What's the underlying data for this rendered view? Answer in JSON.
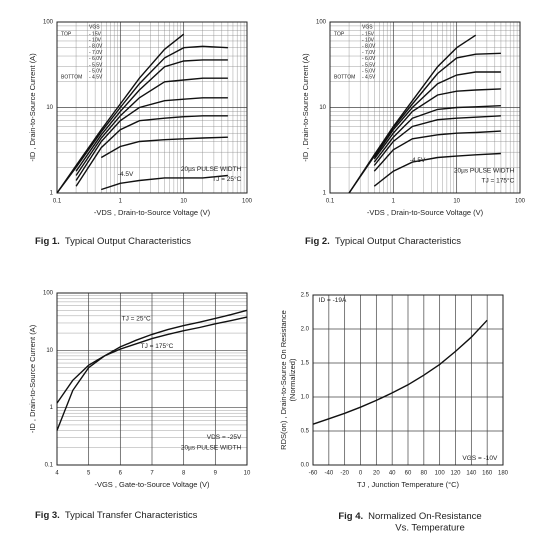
{
  "chart_data": [
    {
      "type": "line",
      "figure_number": "Fig 1.",
      "caption": [
        "Typical Output Characteristics"
      ],
      "xlabel": [
        "-VDS , Drain-to-Source Voltage (V)"
      ],
      "ylabel": [
        "-ID , Drain-to-Source Current (A)"
      ],
      "xlog": true,
      "ylog": true,
      "grid": true,
      "xlim": [
        0.1,
        100
      ],
      "xticks": [
        0.1,
        1,
        10,
        100
      ],
      "ylim": [
        1,
        100
      ],
      "yticks": [
        1,
        10,
        100
      ],
      "legend_title": "VGS",
      "legend_top": "TOP",
      "legend_bottom": "BOTTOM",
      "annotations": [
        "-4.5V",
        "20µs PULSE WIDTH",
        "TJ = 25°C"
      ],
      "x": [
        0.1,
        0.2,
        0.5,
        1,
        2,
        5,
        10,
        20,
        50
      ],
      "series": [
        {
          "name": "- 15V",
          "color": "#111",
          "values": [
            1.0,
            2.1,
            5.5,
            11,
            22,
            48,
            72,
            null,
            null
          ]
        },
        {
          "name": "- 10V",
          "color": "#111",
          "values": [
            1.0,
            2.0,
            5.2,
            10,
            19,
            38,
            50,
            52,
            50
          ]
        },
        {
          "name": "- 8.0V",
          "color": "#111",
          "values": [
            null,
            1.8,
            4.8,
            9,
            16,
            30,
            35,
            36,
            36
          ]
        },
        {
          "name": "- 7.0V",
          "color": "#111",
          "values": [
            null,
            1.6,
            4.4,
            8,
            13,
            20,
            21,
            22,
            22
          ]
        },
        {
          "name": "- 6.0V",
          "color": "#111",
          "values": [
            null,
            1.4,
            4,
            7,
            10,
            12,
            12.5,
            13,
            13
          ]
        },
        {
          "name": "- 5.5V",
          "color": "#111",
          "values": [
            null,
            1.2,
            3.4,
            5.5,
            7,
            7.5,
            7.8,
            8,
            8
          ]
        },
        {
          "name": "- 5.0V",
          "color": "#111",
          "values": [
            null,
            null,
            2.6,
            3.5,
            4,
            4.2,
            4.3,
            4.4,
            4.5
          ]
        },
        {
          "name": "- 4.5V",
          "color": "#111",
          "values": [
            null,
            null,
            1.1,
            1.3,
            1.4,
            1.5,
            1.5,
            1.5,
            1.6
          ]
        }
      ]
    },
    {
      "type": "line",
      "figure_number": "Fig 2.",
      "caption": [
        "Typical Output Characteristics"
      ],
      "xlabel": [
        "-VDS , Drain-to-Source Voltage (V)"
      ],
      "ylabel": [
        "-ID , Drain-to-Source Current (A)"
      ],
      "xlog": true,
      "ylog": true,
      "grid": true,
      "xlim": [
        0.1,
        100
      ],
      "xticks": [
        0.1,
        1,
        10,
        100
      ],
      "ylim": [
        1,
        100
      ],
      "yticks": [
        1,
        10,
        100
      ],
      "legend_title": "VGS",
      "legend_top": "TOP",
      "legend_bottom": "BOTTOM",
      "annotations": [
        "-4.5V",
        "20µs PULSE WIDTH",
        "TJ = 175°C"
      ],
      "x": [
        0.1,
        0.2,
        0.5,
        1,
        2,
        5,
        10,
        20,
        50
      ],
      "series": [
        {
          "name": "- 15V",
          "color": "#111",
          "values": [
            null,
            1.0,
            2.8,
            6,
            12,
            30,
            50,
            70,
            null
          ]
        },
        {
          "name": "- 10V",
          "color": "#111",
          "values": [
            null,
            1.0,
            2.7,
            5.8,
            11,
            25,
            38,
            42,
            43
          ]
        },
        {
          "name": "- 8.0V",
          "color": "#111",
          "values": [
            null,
            null,
            2.6,
            5.5,
            10,
            19,
            24,
            26,
            26
          ]
        },
        {
          "name": "- 7.0V",
          "color": "#111",
          "values": [
            null,
            null,
            2.5,
            5,
            9,
            14,
            15.5,
            16,
            16.5
          ]
        },
        {
          "name": "- 6.0V",
          "color": "#111",
          "values": [
            null,
            null,
            2.3,
            4.5,
            7.5,
            9.5,
            10,
            10.2,
            10.5
          ]
        },
        {
          "name": "- 5.5V",
          "color": "#111",
          "values": [
            null,
            null,
            2.1,
            4,
            6,
            7.2,
            7.5,
            7.7,
            8
          ]
        },
        {
          "name": "- 5.0V",
          "color": "#111",
          "values": [
            null,
            null,
            1.8,
            3.2,
            4.3,
            4.8,
            5,
            5.1,
            5.3
          ]
        },
        {
          "name": "- 4.5V",
          "color": "#111",
          "values": [
            null,
            null,
            1.2,
            1.8,
            2.3,
            2.6,
            2.7,
            2.8,
            2.9
          ]
        }
      ]
    },
    {
      "type": "line",
      "figure_number": "Fig 3.",
      "caption": [
        "Typical Transfer Characteristics"
      ],
      "xlabel": [
        "-VGS , Gate-to-Source Voltage (V)"
      ],
      "ylabel": [
        "-ID , Drain-to-Source Current (A)"
      ],
      "xlog": false,
      "ylog": true,
      "grid": true,
      "xlim": [
        4,
        10
      ],
      "xticks": [
        4,
        5,
        6,
        7,
        8,
        9,
        10
      ],
      "ylim": [
        0.1,
        100
      ],
      "yticks": [
        0.1,
        1,
        10,
        100
      ],
      "annotations": [
        "VDS = -25V",
        "20µs PULSE WIDTH"
      ],
      "x": [
        4,
        4.5,
        5,
        5.5,
        6,
        6.5,
        7,
        7.5,
        8,
        8.5,
        9,
        9.5,
        10
      ],
      "series": [
        {
          "name": "TJ = 25°C",
          "color": "#111",
          "values": [
            0.4,
            2,
            5,
            8,
            11.5,
            15,
            19,
            23,
            27,
            31,
            36,
            42,
            50
          ]
        },
        {
          "name": "TJ = 175°C",
          "color": "#111",
          "values": [
            1.2,
            3,
            5.5,
            8,
            10.5,
            13,
            16,
            19,
            22,
            25,
            29,
            33,
            38
          ]
        }
      ]
    },
    {
      "type": "line",
      "figure_number": "Fig 4.",
      "caption": [
        "Normalized On-Resistance",
        "Vs. Temperature"
      ],
      "xlabel": [
        "TJ , Junction Temperature (°C)"
      ],
      "ylabel": [
        "RDS(on) , Drain-to-Source On Resistance",
        "(Normalized)"
      ],
      "xlog": false,
      "ylog": false,
      "grid": true,
      "xlim": [
        -60,
        180
      ],
      "xticks": [
        -60,
        -40,
        -20,
        0,
        20,
        40,
        60,
        80,
        100,
        120,
        140,
        160,
        180
      ],
      "ylim": [
        0,
        2.5
      ],
      "yticks": [
        {
          "value": 0,
          "label": "0.0"
        },
        0.5,
        {
          "value": 1,
          "label": "1.0"
        },
        1.5,
        {
          "value": 2,
          "label": "2.0"
        },
        2.5
      ],
      "annotations": [
        "ID = -19A",
        "VGS = -10V"
      ],
      "x": [
        -60,
        -40,
        -20,
        0,
        20,
        40,
        60,
        80,
        100,
        120,
        140,
        160
      ],
      "series": [
        {
          "color": "#111",
          "values": [
            0.6,
            0.68,
            0.76,
            0.85,
            0.95,
            1.06,
            1.18,
            1.32,
            1.48,
            1.67,
            1.88,
            2.13
          ]
        }
      ]
    }
  ]
}
